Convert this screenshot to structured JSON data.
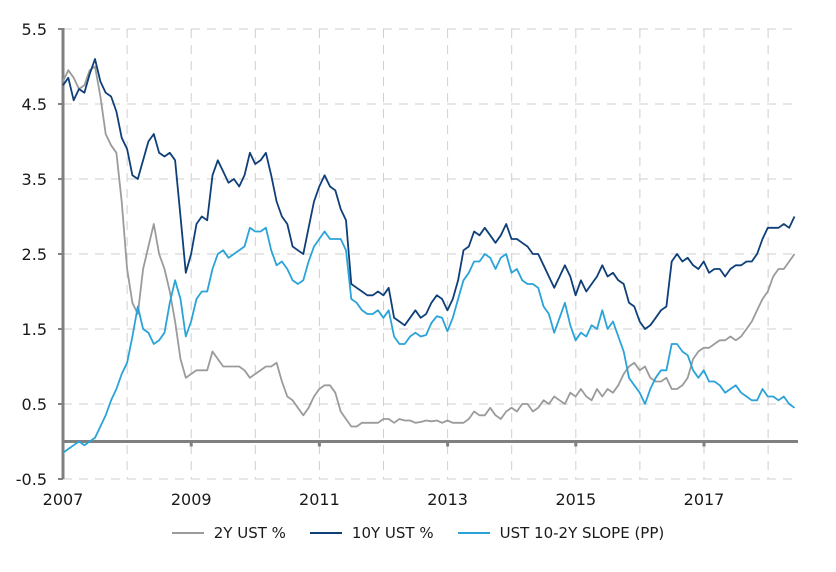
{
  "chart_data": {
    "type": "line",
    "title": "",
    "xlabel": "",
    "ylabel": "",
    "xlim": [
      2007,
      2018.5
    ],
    "ylim": [
      -0.5,
      5.5
    ],
    "grid": true,
    "legend_position": "bottom",
    "x_ticks": [
      "2007",
      "2009",
      "2011",
      "2013",
      "2015",
      "2017"
    ],
    "x_tick_values": [
      2007,
      2009,
      2011,
      2013,
      2015,
      2017
    ],
    "y_ticks": [
      "5.5",
      "4.5",
      "3.5",
      "2.5",
      "1.5",
      "0.5",
      "-0.5"
    ],
    "y_tick_values": [
      5.5,
      4.5,
      3.5,
      2.5,
      1.5,
      0.5,
      -0.5
    ],
    "x_step": 0.0833,
    "x_start": 2007.0,
    "series": [
      {
        "name": "2Y UST %",
        "color": "#9b9b9b",
        "values": [
          4.8,
          4.95,
          4.85,
          4.7,
          4.75,
          4.95,
          5.0,
          4.6,
          4.1,
          3.95,
          3.85,
          3.2,
          2.3,
          1.85,
          1.7,
          2.3,
          2.6,
          2.9,
          2.5,
          2.3,
          2.0,
          1.6,
          1.1,
          0.85,
          0.9,
          0.95,
          0.95,
          0.95,
          1.2,
          1.1,
          1.0,
          1.0,
          1.0,
          1.0,
          0.95,
          0.85,
          0.9,
          0.95,
          1.0,
          1.0,
          1.05,
          0.8,
          0.6,
          0.55,
          0.45,
          0.35,
          0.45,
          0.6,
          0.7,
          0.75,
          0.75,
          0.65,
          0.4,
          0.3,
          0.2,
          0.2,
          0.25,
          0.25,
          0.25,
          0.25,
          0.3,
          0.3,
          0.25,
          0.3,
          0.28,
          0.28,
          0.25,
          0.26,
          0.28,
          0.27,
          0.28,
          0.25,
          0.28,
          0.25,
          0.25,
          0.25,
          0.3,
          0.4,
          0.35,
          0.35,
          0.45,
          0.35,
          0.3,
          0.4,
          0.45,
          0.4,
          0.5,
          0.5,
          0.4,
          0.45,
          0.55,
          0.5,
          0.6,
          0.55,
          0.5,
          0.65,
          0.6,
          0.7,
          0.6,
          0.55,
          0.7,
          0.6,
          0.7,
          0.65,
          0.75,
          0.9,
          1.0,
          1.05,
          0.95,
          1.0,
          0.85,
          0.8,
          0.8,
          0.85,
          0.7,
          0.7,
          0.75,
          0.85,
          1.1,
          1.2,
          1.25,
          1.25,
          1.3,
          1.35,
          1.35,
          1.4,
          1.35,
          1.4,
          1.5,
          1.6,
          1.75,
          1.9,
          2.0,
          2.2,
          2.3,
          2.3,
          2.4,
          2.5
        ]
      },
      {
        "name": "10Y UST %",
        "color": "#0e3f78",
        "values": [
          4.75,
          4.85,
          4.55,
          4.7,
          4.65,
          4.9,
          5.1,
          4.8,
          4.65,
          4.6,
          4.4,
          4.05,
          3.9,
          3.55,
          3.5,
          3.75,
          4.0,
          4.1,
          3.85,
          3.8,
          3.85,
          3.75,
          3.0,
          2.25,
          2.5,
          2.9,
          3.0,
          2.95,
          3.55,
          3.75,
          3.6,
          3.45,
          3.5,
          3.4,
          3.55,
          3.85,
          3.7,
          3.75,
          3.85,
          3.55,
          3.2,
          3.0,
          2.9,
          2.6,
          2.55,
          2.5,
          2.85,
          3.2,
          3.4,
          3.55,
          3.4,
          3.35,
          3.1,
          2.95,
          2.1,
          2.05,
          2.0,
          1.95,
          1.95,
          2.0,
          1.95,
          2.05,
          1.65,
          1.6,
          1.55,
          1.65,
          1.75,
          1.65,
          1.7,
          1.85,
          1.95,
          1.9,
          1.75,
          1.9,
          2.15,
          2.55,
          2.6,
          2.8,
          2.75,
          2.85,
          2.75,
          2.65,
          2.75,
          2.9,
          2.7,
          2.7,
          2.65,
          2.6,
          2.5,
          2.5,
          2.35,
          2.2,
          2.05,
          2.2,
          2.35,
          2.2,
          1.95,
          2.15,
          2.0,
          2.1,
          2.2,
          2.35,
          2.2,
          2.25,
          2.15,
          2.1,
          1.85,
          1.8,
          1.6,
          1.5,
          1.55,
          1.65,
          1.75,
          1.8,
          2.4,
          2.5,
          2.4,
          2.45,
          2.35,
          2.3,
          2.4,
          2.25,
          2.3,
          2.3,
          2.2,
          2.3,
          2.35,
          2.35,
          2.4,
          2.4,
          2.5,
          2.7,
          2.85,
          2.85,
          2.85,
          2.9,
          2.85,
          3.0
        ]
      },
      {
        "name": "UST 10-2Y SLOPE (PP)",
        "color": "#2aa3d8",
        "values": [
          -0.15,
          -0.1,
          -0.05,
          0.0,
          -0.05,
          0.0,
          0.05,
          0.2,
          0.35,
          0.55,
          0.7,
          0.9,
          1.05,
          1.4,
          1.8,
          1.5,
          1.45,
          1.3,
          1.35,
          1.45,
          1.85,
          2.15,
          1.9,
          1.4,
          1.6,
          1.9,
          2.0,
          2.0,
          2.3,
          2.5,
          2.55,
          2.45,
          2.5,
          2.55,
          2.6,
          2.85,
          2.8,
          2.8,
          2.85,
          2.55,
          2.35,
          2.4,
          2.3,
          2.15,
          2.1,
          2.15,
          2.4,
          2.6,
          2.7,
          2.8,
          2.7,
          2.7,
          2.7,
          2.55,
          1.9,
          1.85,
          1.75,
          1.7,
          1.7,
          1.75,
          1.65,
          1.75,
          1.4,
          1.3,
          1.3,
          1.4,
          1.45,
          1.4,
          1.42,
          1.58,
          1.67,
          1.65,
          1.47,
          1.65,
          1.9,
          2.15,
          2.25,
          2.4,
          2.4,
          2.5,
          2.45,
          2.3,
          2.45,
          2.5,
          2.25,
          2.3,
          2.15,
          2.1,
          2.1,
          2.05,
          1.8,
          1.7,
          1.45,
          1.65,
          1.85,
          1.55,
          1.35,
          1.45,
          1.4,
          1.55,
          1.5,
          1.75,
          1.5,
          1.6,
          1.4,
          1.2,
          0.85,
          0.75,
          0.65,
          0.5,
          0.7,
          0.85,
          0.95,
          0.95,
          1.3,
          1.3,
          1.2,
          1.15,
          0.95,
          0.85,
          0.95,
          0.8,
          0.8,
          0.75,
          0.65,
          0.7,
          0.75,
          0.65,
          0.6,
          0.55,
          0.55,
          0.7,
          0.6,
          0.6,
          0.55,
          0.6,
          0.5,
          0.45
        ]
      }
    ]
  },
  "legend": {
    "items": [
      "2Y UST %",
      "10Y UST %",
      "UST 10-2Y SLOPE (PP)"
    ]
  }
}
